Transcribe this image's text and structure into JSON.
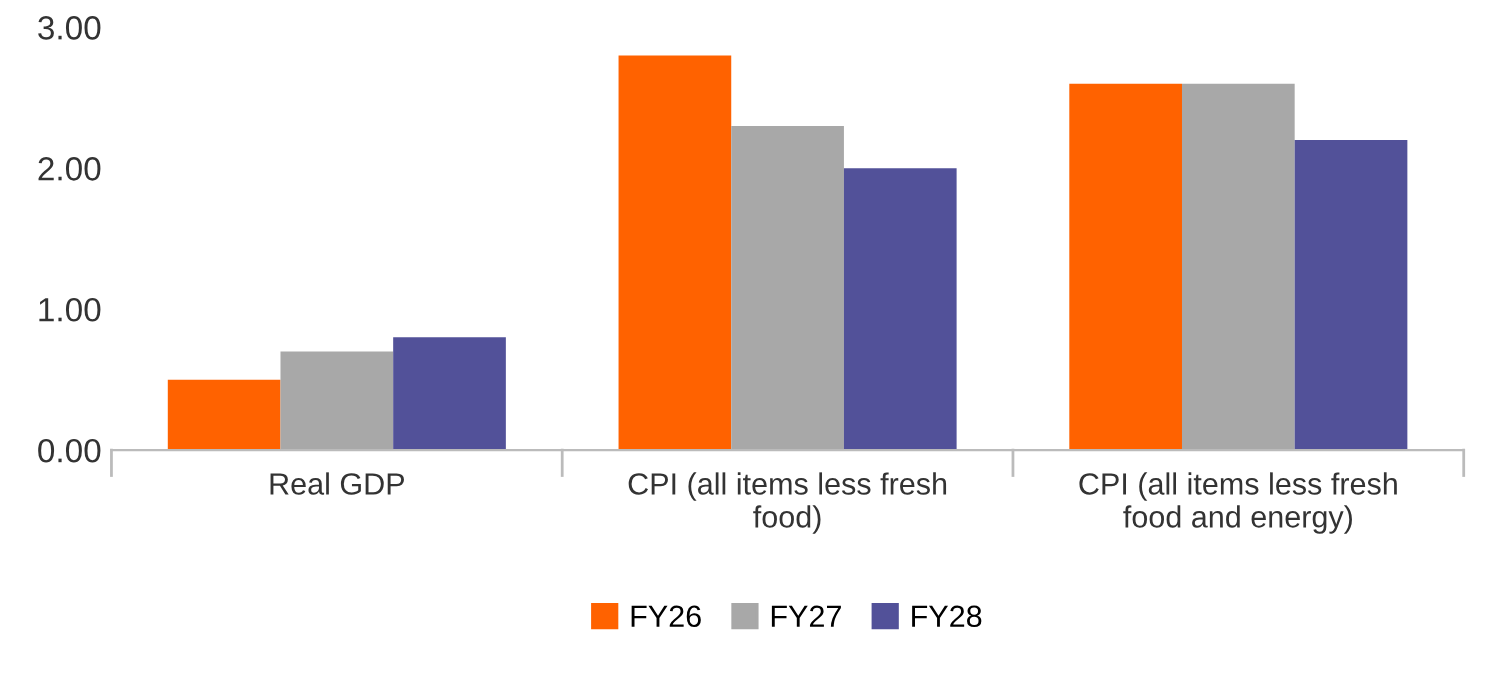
{
  "chart_data": {
    "type": "bar",
    "categories": [
      "Real GDP",
      "CPI (all items less fresh\nfood)",
      "CPI (all items less fresh\nfood and energy)"
    ],
    "series": [
      {
        "name": "FY26",
        "color": "#ff6200",
        "values": [
          0.5,
          2.8,
          2.6
        ]
      },
      {
        "name": "FY27",
        "color": "#a8a8a8",
        "values": [
          0.7,
          2.3,
          2.6
        ]
      },
      {
        "name": "FY28",
        "color": "#525199",
        "values": [
          0.8,
          2.0,
          2.2
        ]
      }
    ],
    "ylim": [
      0,
      3
    ],
    "yticks": [
      {
        "value": 0,
        "label": "0.00"
      },
      {
        "value": 1,
        "label": "1.00"
      },
      {
        "value": 2,
        "label": "2.00"
      },
      {
        "value": 3,
        "label": "3.00"
      }
    ],
    "grid": false,
    "legend": "bottom"
  }
}
